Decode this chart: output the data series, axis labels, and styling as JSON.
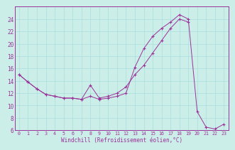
{
  "xlabel": "Windchill (Refroidissement éolien,°C)",
  "line_color": "#993399",
  "bg_color": "#cceee8",
  "grid_color": "#aadddd",
  "axis_color": "#993399",
  "line1_x": [
    0,
    1,
    2,
    3,
    4,
    5,
    6,
    7,
    8,
    9,
    10,
    11,
    12,
    13,
    14,
    15,
    16,
    17,
    18,
    19
  ],
  "line1_y": [
    15.0,
    13.8,
    12.7,
    11.8,
    11.5,
    11.2,
    11.2,
    11.0,
    13.3,
    11.2,
    11.5,
    12.0,
    13.0,
    15.0,
    16.5,
    18.5,
    20.5,
    22.5,
    24.0,
    23.5
  ],
  "line2_x": [
    0,
    1,
    2,
    3,
    4,
    5,
    6,
    7,
    8,
    9,
    10,
    11,
    12,
    13,
    14,
    15,
    16,
    17,
    18,
    19,
    20,
    21,
    22,
    23
  ],
  "line2_y": [
    15.0,
    13.8,
    12.7,
    11.8,
    11.5,
    11.2,
    11.2,
    11.0,
    11.5,
    11.0,
    11.2,
    11.5,
    12.0,
    16.2,
    19.2,
    21.2,
    22.5,
    23.5,
    24.7,
    24.0,
    9.0,
    6.5,
    6.2,
    7.0
  ],
  "xlim": [
    -0.5,
    23.5
  ],
  "ylim": [
    6,
    26
  ],
  "yticks": [
    6,
    8,
    10,
    12,
    14,
    16,
    18,
    20,
    22,
    24
  ],
  "xticks": [
    0,
    1,
    2,
    3,
    4,
    5,
    6,
    7,
    8,
    9,
    10,
    11,
    12,
    13,
    14,
    15,
    16,
    17,
    18,
    19,
    20,
    21,
    22,
    23
  ]
}
